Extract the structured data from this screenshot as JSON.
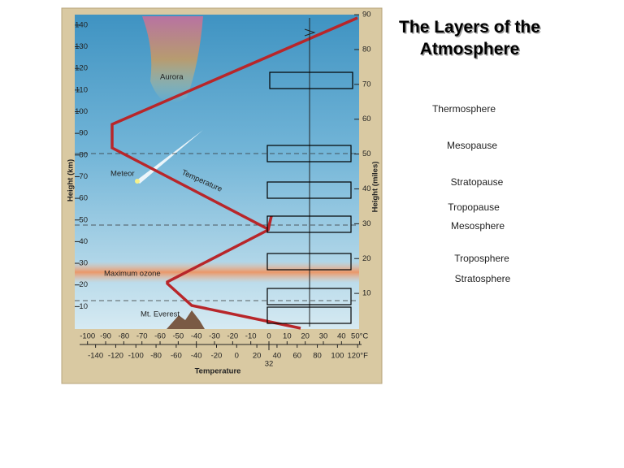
{
  "slide_title": "The Layers of the Atmosphere",
  "word_bank": [
    "Thermosphere",
    "Mesopause",
    "Stratopause",
    "Tropopause",
    "Mesosphere",
    "Troposphere",
    "Stratosphere"
  ],
  "figure": {
    "left_axis_label": "Height (km)",
    "right_axis_label": "Height (miles)",
    "bottom_axis_label": "Temperature",
    "km_ticks": [
      10,
      20,
      30,
      40,
      50,
      60,
      70,
      80,
      90,
      100,
      110,
      120,
      130,
      140
    ],
    "mile_ticks": [
      10,
      20,
      30,
      40,
      50,
      60,
      70,
      80,
      90
    ],
    "celsius_ticks": [
      -100,
      -90,
      -80,
      -70,
      -60,
      -50,
      -40,
      -30,
      -20,
      -10,
      0,
      10,
      20,
      30,
      40,
      {
        "value": 50,
        "label": "50°C"
      }
    ],
    "fahrenheit_ticks": [
      -140,
      -120,
      -100,
      -80,
      -60,
      -40,
      -20,
      0,
      20,
      40,
      60,
      80,
      100,
      {
        "value": 120,
        "label": "120°F"
      }
    ],
    "freezing_label": 32,
    "annotations": {
      "aurora": "Aurora",
      "meteor": "Meteor",
      "temperature": "Temperature",
      "ozone": "Maximum ozone",
      "everest": "Mt. Everest"
    }
  }
}
